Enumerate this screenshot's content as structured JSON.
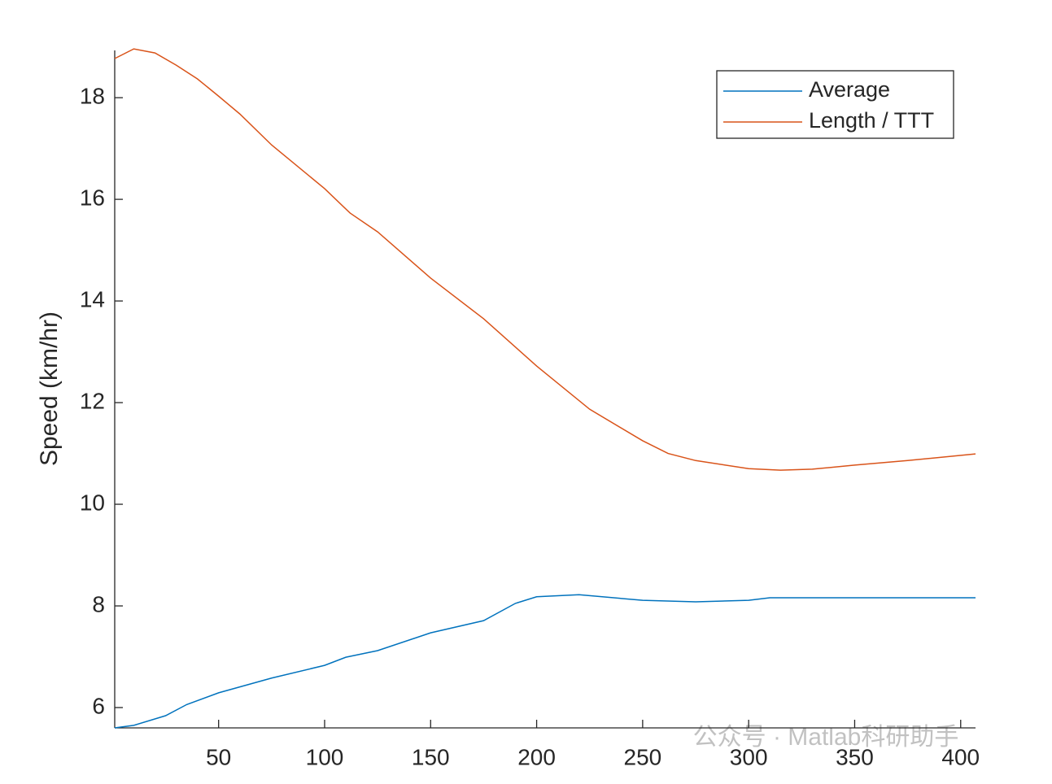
{
  "chart_data": {
    "type": "line",
    "ylabel": "Speed (km/hr)",
    "xlim": [
      1,
      407
    ],
    "ylim": [
      5.6,
      18.93
    ],
    "xticks": [
      50,
      100,
      150,
      200,
      250,
      300,
      350,
      400
    ],
    "yticks": [
      6,
      8,
      10,
      12,
      14,
      16,
      18
    ],
    "legend": "northeast",
    "watermark": "公众号 · Matlab科研助手",
    "series": [
      {
        "name": "Average",
        "color": "#0072bd",
        "x": [
          1,
          10,
          25,
          35,
          50,
          75,
          100,
          110,
          125,
          150,
          175,
          190,
          200,
          220,
          250,
          275,
          300,
          310,
          407
        ],
        "values": [
          5.6,
          5.65,
          5.84,
          6.06,
          6.29,
          6.58,
          6.83,
          6.99,
          7.12,
          7.47,
          7.71,
          8.05,
          8.18,
          8.22,
          8.11,
          8.08,
          8.11,
          8.16,
          8.16
        ]
      },
      {
        "name": "Length / TTT",
        "color": "#d95319",
        "x": [
          1,
          10,
          20,
          30,
          40,
          50,
          60,
          75,
          100,
          112,
          125,
          150,
          175,
          200,
          225,
          250,
          262,
          275,
          300,
          315,
          330,
          350,
          375,
          407
        ],
        "values": [
          18.77,
          18.96,
          18.88,
          18.64,
          18.37,
          18.03,
          17.68,
          17.07,
          16.21,
          15.73,
          15.36,
          14.45,
          13.65,
          12.72,
          11.87,
          11.25,
          11.0,
          10.86,
          10.7,
          10.67,
          10.69,
          10.77,
          10.86,
          10.99
        ]
      }
    ]
  }
}
